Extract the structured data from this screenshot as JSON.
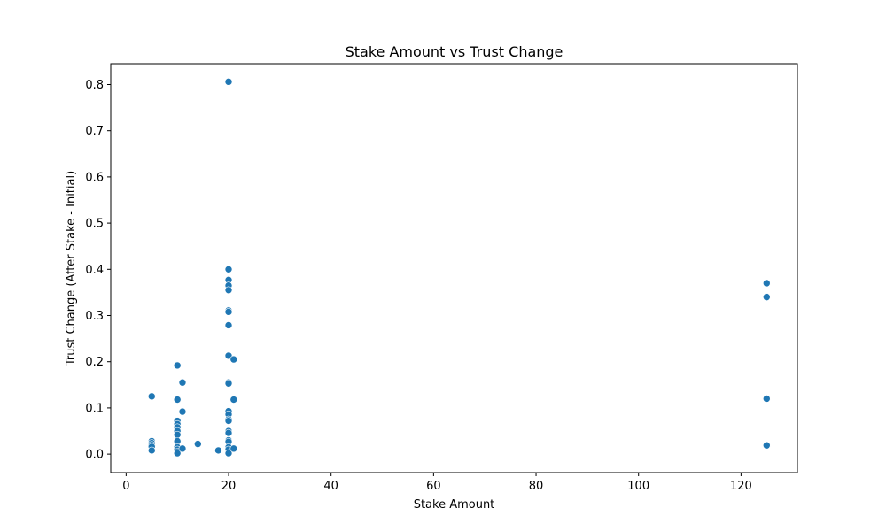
{
  "chart_data": {
    "type": "scatter",
    "title": "Stake Amount vs Trust Change",
    "xlabel": "Stake Amount",
    "ylabel": "Trust Change (After Stake - Initial)",
    "xlim": [
      -3,
      131
    ],
    "ylim": [
      -0.04,
      0.845
    ],
    "xticks": [
      0,
      20,
      40,
      60,
      80,
      100,
      120
    ],
    "yticks": [
      0.0,
      0.1,
      0.2,
      0.3,
      0.4,
      0.5,
      0.6,
      0.7,
      0.8
    ],
    "ytick_labels": [
      "0.0",
      "0.1",
      "0.2",
      "0.3",
      "0.4",
      "0.5",
      "0.6",
      "0.7",
      "0.8"
    ],
    "grid": false,
    "legend": "none",
    "point_color": "#1f77b4",
    "points": [
      [
        5,
        0.125
      ],
      [
        5,
        0.028
      ],
      [
        5,
        0.024
      ],
      [
        5,
        0.02
      ],
      [
        5,
        0.016
      ],
      [
        5,
        0.008
      ],
      [
        10,
        0.192
      ],
      [
        10,
        0.118
      ],
      [
        10,
        0.072
      ],
      [
        10,
        0.065
      ],
      [
        10,
        0.058
      ],
      [
        10,
        0.05
      ],
      [
        10,
        0.042
      ],
      [
        10,
        0.028
      ],
      [
        10,
        0.015
      ],
      [
        10,
        0.01
      ],
      [
        10,
        0.005
      ],
      [
        10,
        0.002
      ],
      [
        11,
        0.155
      ],
      [
        11,
        0.092
      ],
      [
        11,
        0.012
      ],
      [
        14,
        0.022
      ],
      [
        18,
        0.008
      ],
      [
        20,
        0.806
      ],
      [
        20,
        0.4
      ],
      [
        20,
        0.377
      ],
      [
        20,
        0.365
      ],
      [
        20,
        0.355
      ],
      [
        20,
        0.311
      ],
      [
        20,
        0.308
      ],
      [
        20,
        0.279
      ],
      [
        20,
        0.213
      ],
      [
        20,
        0.155
      ],
      [
        20,
        0.153
      ],
      [
        20,
        0.093
      ],
      [
        20,
        0.086
      ],
      [
        20,
        0.075
      ],
      [
        20,
        0.072
      ],
      [
        20,
        0.05
      ],
      [
        20,
        0.046
      ],
      [
        20,
        0.03
      ],
      [
        20,
        0.027
      ],
      [
        20,
        0.015
      ],
      [
        20,
        0.01
      ],
      [
        20,
        0.002
      ],
      [
        21,
        0.205
      ],
      [
        21,
        0.118
      ],
      [
        21,
        0.012
      ],
      [
        125,
        0.37
      ],
      [
        125,
        0.34
      ],
      [
        125,
        0.12
      ],
      [
        125,
        0.019
      ]
    ]
  }
}
